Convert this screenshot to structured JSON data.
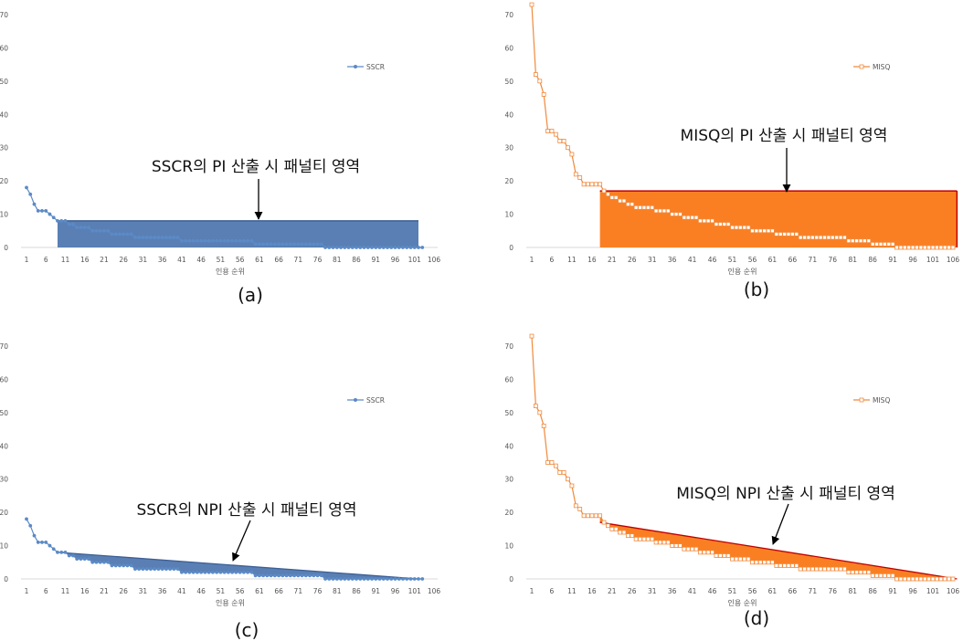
{
  "figure": {
    "panel_labels": [
      "(a)",
      "(b)",
      "(c)",
      "(d)"
    ],
    "annotations": [
      "SSCR의 PI 산출 시 패널티 영역",
      "MISQ의 PI 산출 시 패널티 영역",
      "SSCR의 NPI 산출 시 패널티 영역",
      "MISQ의 NPI 산출 시 패널티 영역"
    ]
  },
  "chart_data": [
    {
      "type": "line",
      "panel": "(a)",
      "xlabel": "인용 순위",
      "ylabel": "",
      "ylim": [
        0,
        70
      ],
      "yticks": [
        0,
        10,
        20,
        30,
        40,
        50,
        60,
        70
      ],
      "xticks": [
        "1",
        "6",
        "11",
        "16",
        "21",
        "26",
        "31",
        "36",
        "41",
        "46",
        "51",
        "56",
        "61",
        "66",
        "71",
        "76",
        "81",
        "86",
        "91",
        "96",
        "101",
        "106"
      ],
      "legend": "top-right",
      "series": [
        {
          "name": "SSCR",
          "color": "#5b8ac6",
          "marker": "circle",
          "runs": [
            [
              1,
              18
            ],
            [
              1,
              16
            ],
            [
              1,
              13
            ],
            [
              1,
              11
            ],
            [
              2,
              11
            ],
            [
              1,
              10
            ],
            [
              1,
              9
            ],
            [
              3,
              8
            ],
            [
              2,
              7
            ],
            [
              4,
              6
            ],
            [
              5,
              5
            ],
            [
              6,
              4
            ],
            [
              12,
              3
            ],
            [
              19,
              2
            ],
            [
              18,
              1
            ],
            [
              26,
              0
            ]
          ]
        }
      ],
      "penalty_area": {
        "kind": "PI",
        "level": 8,
        "from_rank": 9,
        "to_rank": 102,
        "color": "#5a7fb4",
        "annotation": "SSCR의 PI 산출 시 패널티 영역"
      }
    },
    {
      "type": "line",
      "panel": "(b)",
      "xlabel": "인용 순위",
      "ylabel": "",
      "ylim": [
        0,
        70
      ],
      "yticks": [
        0,
        10,
        20,
        30,
        40,
        50,
        60,
        70
      ],
      "xticks": [
        "1",
        "6",
        "11",
        "16",
        "21",
        "26",
        "31",
        "36",
        "41",
        "46",
        "51",
        "56",
        "61",
        "66",
        "71",
        "76",
        "81",
        "86",
        "91",
        "96",
        "101",
        "106"
      ],
      "legend": "top-right",
      "series": [
        {
          "name": "MISQ",
          "color": "#f08a3c",
          "marker": "square",
          "runs": [
            [
              1,
              73
            ],
            [
              1,
              52
            ],
            [
              1,
              50
            ],
            [
              1,
              46
            ],
            [
              1,
              35
            ],
            [
              1,
              35
            ],
            [
              1,
              34
            ],
            [
              1,
              32
            ],
            [
              1,
              32
            ],
            [
              1,
              30
            ],
            [
              1,
              28
            ],
            [
              1,
              22
            ],
            [
              1,
              21
            ],
            [
              1,
              19
            ],
            [
              4,
              19
            ],
            [
              1,
              17
            ],
            [
              1,
              16
            ],
            [
              2,
              15
            ],
            [
              2,
              14
            ],
            [
              2,
              13
            ],
            [
              5,
              12
            ],
            [
              4,
              11
            ],
            [
              3,
              10
            ],
            [
              4,
              9
            ],
            [
              4,
              8
            ],
            [
              4,
              7
            ],
            [
              5,
              6
            ],
            [
              6,
              5
            ],
            [
              6,
              4
            ],
            [
              12,
              3
            ],
            [
              6,
              2
            ],
            [
              6,
              1
            ],
            [
              15,
              0
            ]
          ]
        }
      ],
      "penalty_area": {
        "kind": "PI",
        "level": 17,
        "from_rank": 18,
        "to_rank": 107,
        "color": "#fa7f23",
        "annotation": "MISQ의 PI 산출 시 패널티 영역"
      }
    },
    {
      "type": "line",
      "panel": "(c)",
      "xlabel": "인용 순위",
      "ylabel": "",
      "ylim": [
        0,
        70
      ],
      "yticks": [
        0,
        10,
        20,
        30,
        40,
        50,
        60,
        70
      ],
      "xticks": [
        "1",
        "6",
        "11",
        "16",
        "21",
        "26",
        "31",
        "36",
        "41",
        "46",
        "51",
        "56",
        "61",
        "66",
        "71",
        "76",
        "81",
        "86",
        "91",
        "96",
        "101",
        "106"
      ],
      "legend": "top-right",
      "series": [
        {
          "name": "SSCR",
          "color": "#5b8ac6",
          "marker": "circle",
          "runs": [
            [
              1,
              18
            ],
            [
              1,
              16
            ],
            [
              1,
              13
            ],
            [
              1,
              11
            ],
            [
              2,
              11
            ],
            [
              1,
              10
            ],
            [
              1,
              9
            ],
            [
              3,
              8
            ],
            [
              2,
              7
            ],
            [
              4,
              6
            ],
            [
              5,
              5
            ],
            [
              6,
              4
            ],
            [
              12,
              3
            ],
            [
              19,
              2
            ],
            [
              18,
              1
            ],
            [
              26,
              0
            ]
          ]
        }
      ],
      "penalty_area": {
        "kind": "NPI",
        "start": [
          9,
          8
        ],
        "end": [
          102,
          0
        ],
        "color": "#5a7fb4",
        "annotation": "SSCR의 NPI 산출 시 패널티 영역"
      }
    },
    {
      "type": "line",
      "panel": "(d)",
      "xlabel": "인용 순위",
      "ylabel": "",
      "ylim": [
        0,
        70
      ],
      "yticks": [
        0,
        10,
        20,
        30,
        40,
        50,
        60,
        70
      ],
      "xticks": [
        "1",
        "6",
        "11",
        "16",
        "21",
        "26",
        "31",
        "36",
        "41",
        "46",
        "51",
        "56",
        "61",
        "66",
        "71",
        "76",
        "81",
        "86",
        "91",
        "96",
        "101",
        "106"
      ],
      "legend": "top-right",
      "series": [
        {
          "name": "MISQ",
          "color": "#f08a3c",
          "marker": "square",
          "runs": [
            [
              1,
              73
            ],
            [
              1,
              52
            ],
            [
              1,
              50
            ],
            [
              1,
              46
            ],
            [
              1,
              35
            ],
            [
              1,
              35
            ],
            [
              1,
              34
            ],
            [
              1,
              32
            ],
            [
              1,
              32
            ],
            [
              1,
              30
            ],
            [
              1,
              28
            ],
            [
              1,
              22
            ],
            [
              1,
              21
            ],
            [
              1,
              19
            ],
            [
              4,
              19
            ],
            [
              1,
              17
            ],
            [
              1,
              16
            ],
            [
              2,
              15
            ],
            [
              2,
              14
            ],
            [
              2,
              13
            ],
            [
              5,
              12
            ],
            [
              4,
              11
            ],
            [
              3,
              10
            ],
            [
              4,
              9
            ],
            [
              4,
              8
            ],
            [
              4,
              7
            ],
            [
              5,
              6
            ],
            [
              6,
              5
            ],
            [
              6,
              4
            ],
            [
              12,
              3
            ],
            [
              6,
              2
            ],
            [
              6,
              1
            ],
            [
              15,
              0
            ]
          ]
        }
      ],
      "penalty_area": {
        "kind": "NPI",
        "start": [
          18,
          17
        ],
        "end": [
          107,
          0
        ],
        "color": "#fa7f23",
        "annotation": "MISQ의 NPI 산출 시 패널티 영역"
      }
    }
  ]
}
